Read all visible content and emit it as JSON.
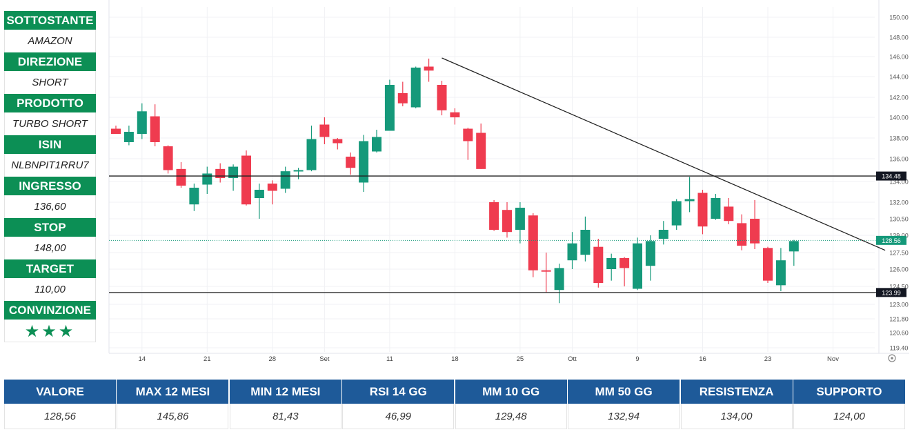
{
  "side_panel": {
    "items": [
      {
        "label": "SOTTOSTANTE",
        "value": "AMAZON"
      },
      {
        "label": "DIREZIONE",
        "value": "SHORT"
      },
      {
        "label": "PRODOTTO",
        "value": "TURBO SHORT"
      },
      {
        "label": "ISIN",
        "value": "NLBNPIT1RRU7"
      },
      {
        "label": "INGRESSO",
        "value": "136,60"
      },
      {
        "label": "STOP",
        "value": "148,00"
      },
      {
        "label": "TARGET",
        "value": "110,00"
      },
      {
        "label": "CONVINZIONE",
        "value": "★★★"
      }
    ]
  },
  "chart_data": {
    "type": "candlestick",
    "x_tick_labels": [
      "14",
      "21",
      "28",
      "Set",
      "11",
      "18",
      "25",
      "Ott",
      "9",
      "16",
      "23",
      "Nov"
    ],
    "y_tick_labels": [
      "150.00",
      "148.00",
      "146.00",
      "144.00",
      "142.00",
      "140.00",
      "138.00",
      "136.00",
      "134.00",
      "132.00",
      "130.50",
      "129.00",
      "127.50",
      "126.00",
      "124.50",
      "123.00",
      "121.80",
      "120.60",
      "119.40"
    ],
    "y_tick_values": [
      150.0,
      148.0,
      146.0,
      144.0,
      142.0,
      140.0,
      138.0,
      136.0,
      134.0,
      132.0,
      130.5,
      129.0,
      127.5,
      126.0,
      124.5,
      123.0,
      121.8,
      120.6,
      119.4
    ],
    "x_tick_index": [
      2,
      7,
      12,
      16,
      21,
      26,
      31,
      35,
      40,
      45,
      50,
      55
    ],
    "candles": [
      {
        "o": 138.9,
        "h": 139.2,
        "l": 138.5,
        "c": 138.4
      },
      {
        "o": 137.6,
        "h": 139.2,
        "l": 137.3,
        "c": 138.6
      },
      {
        "o": 138.4,
        "h": 141.4,
        "l": 137.9,
        "c": 140.6
      },
      {
        "o": 140.1,
        "h": 141.3,
        "l": 137.2,
        "c": 137.6
      },
      {
        "o": 137.2,
        "h": 137.3,
        "l": 134.7,
        "c": 135.0
      },
      {
        "o": 135.1,
        "h": 135.7,
        "l": 133.4,
        "c": 133.6
      },
      {
        "o": 131.8,
        "h": 133.8,
        "l": 131.2,
        "c": 133.4
      },
      {
        "o": 133.7,
        "h": 135.3,
        "l": 132.8,
        "c": 134.7
      },
      {
        "o": 135.1,
        "h": 135.6,
        "l": 133.9,
        "c": 134.3
      },
      {
        "o": 134.3,
        "h": 135.5,
        "l": 133.1,
        "c": 135.3
      },
      {
        "o": 136.3,
        "h": 136.8,
        "l": 131.7,
        "c": 131.8
      },
      {
        "o": 132.4,
        "h": 133.8,
        "l": 130.5,
        "c": 133.2
      },
      {
        "o": 133.8,
        "h": 134.1,
        "l": 131.8,
        "c": 133.1
      },
      {
        "o": 133.3,
        "h": 135.3,
        "l": 132.9,
        "c": 134.9
      },
      {
        "o": 134.9,
        "h": 135.2,
        "l": 134.2,
        "c": 135.0
      },
      {
        "o": 135.0,
        "h": 139.2,
        "l": 134.9,
        "c": 137.9
      },
      {
        "o": 139.3,
        "h": 140.0,
        "l": 137.4,
        "c": 138.1
      },
      {
        "o": 137.9,
        "h": 138.0,
        "l": 136.9,
        "c": 137.5
      },
      {
        "o": 136.2,
        "h": 136.6,
        "l": 134.6,
        "c": 135.2
      },
      {
        "o": 133.9,
        "h": 138.3,
        "l": 133.0,
        "c": 137.7
      },
      {
        "o": 136.7,
        "h": 138.8,
        "l": 136.6,
        "c": 138.1
      },
      {
        "o": 138.7,
        "h": 143.7,
        "l": 138.7,
        "c": 143.2
      },
      {
        "o": 142.4,
        "h": 143.5,
        "l": 141.1,
        "c": 141.4
      },
      {
        "o": 141.0,
        "h": 145.0,
        "l": 140.9,
        "c": 144.9
      },
      {
        "o": 145.0,
        "h": 145.8,
        "l": 143.5,
        "c": 144.6
      },
      {
        "o": 143.2,
        "h": 143.6,
        "l": 140.2,
        "c": 140.7
      },
      {
        "o": 140.5,
        "h": 140.9,
        "l": 139.3,
        "c": 140.0
      },
      {
        "o": 138.9,
        "h": 139.0,
        "l": 135.9,
        "c": 137.7
      },
      {
        "o": 138.5,
        "h": 139.4,
        "l": 135.1,
        "c": 135.1
      },
      {
        "o": 132.0,
        "h": 132.2,
        "l": 129.4,
        "c": 129.5
      },
      {
        "o": 131.3,
        "h": 132.0,
        "l": 128.8,
        "c": 129.3
      },
      {
        "o": 129.5,
        "h": 132.0,
        "l": 128.3,
        "c": 131.5
      },
      {
        "o": 130.8,
        "h": 131.0,
        "l": 125.3,
        "c": 125.9
      },
      {
        "o": 125.9,
        "h": 127.5,
        "l": 124.0,
        "c": 125.8
      },
      {
        "o": 124.2,
        "h": 126.5,
        "l": 123.1,
        "c": 126.1
      },
      {
        "o": 126.8,
        "h": 129.3,
        "l": 126.0,
        "c": 128.3
      },
      {
        "o": 127.3,
        "h": 130.7,
        "l": 126.7,
        "c": 129.5
      },
      {
        "o": 128.0,
        "h": 128.7,
        "l": 124.4,
        "c": 124.8
      },
      {
        "o": 126.0,
        "h": 127.4,
        "l": 125.0,
        "c": 127.0
      },
      {
        "o": 127.0,
        "h": 127.1,
        "l": 124.5,
        "c": 126.1
      },
      {
        "o": 124.3,
        "h": 128.8,
        "l": 124.2,
        "c": 128.3
      },
      {
        "o": 126.3,
        "h": 129.0,
        "l": 125.0,
        "c": 128.5
      },
      {
        "o": 128.7,
        "h": 130.3,
        "l": 128.2,
        "c": 129.5
      },
      {
        "o": 129.9,
        "h": 132.3,
        "l": 129.5,
        "c": 132.1
      },
      {
        "o": 132.1,
        "h": 134.4,
        "l": 131.1,
        "c": 132.3
      },
      {
        "o": 132.9,
        "h": 133.2,
        "l": 129.1,
        "c": 129.8
      },
      {
        "o": 130.5,
        "h": 132.8,
        "l": 130.4,
        "c": 132.4
      },
      {
        "o": 131.6,
        "h": 132.4,
        "l": 130.0,
        "c": 130.3
      },
      {
        "o": 130.1,
        "h": 130.9,
        "l": 127.7,
        "c": 128.1
      },
      {
        "o": 130.5,
        "h": 132.2,
        "l": 127.8,
        "c": 128.3
      },
      {
        "o": 127.9,
        "h": 128.0,
        "l": 124.8,
        "c": 125.0
      },
      {
        "o": 124.6,
        "h": 127.9,
        "l": 124.1,
        "c": 126.8
      },
      {
        "o": 127.6,
        "h": 128.6,
        "l": 126.3,
        "c": 128.5
      }
    ],
    "resistance_level": 134.48,
    "resistance_label": "134.48",
    "support_level": 123.99,
    "support_label": "123.99",
    "last_price": 128.56,
    "last_price_label": "128.56",
    "trendline": {
      "start": {
        "index": 25,
        "value": 145.86
      },
      "end": {
        "index": 59,
        "value": 127.7
      }
    },
    "grid": true,
    "colors": {
      "up": "#15997a",
      "down": "#ef3b4f",
      "resistance": "#222222",
      "support": "#222222",
      "price_line": "#15997a",
      "trendline": "#222222"
    }
  },
  "stats": {
    "headers": [
      "VALORE",
      "MAX 12 MESI",
      "MIN 12 MESI",
      "RSI 14 GG",
      "MM 10 GG",
      "MM 50 GG",
      "RESISTENZA",
      "SUPPORTO"
    ],
    "values": [
      "128,56",
      "145,86",
      "81,43",
      "46,99",
      "129,48",
      "132,94",
      "134,00",
      "124,00"
    ]
  },
  "colors": {
    "panel_green": "#0c8f55",
    "table_blue": "#1e5a99"
  }
}
